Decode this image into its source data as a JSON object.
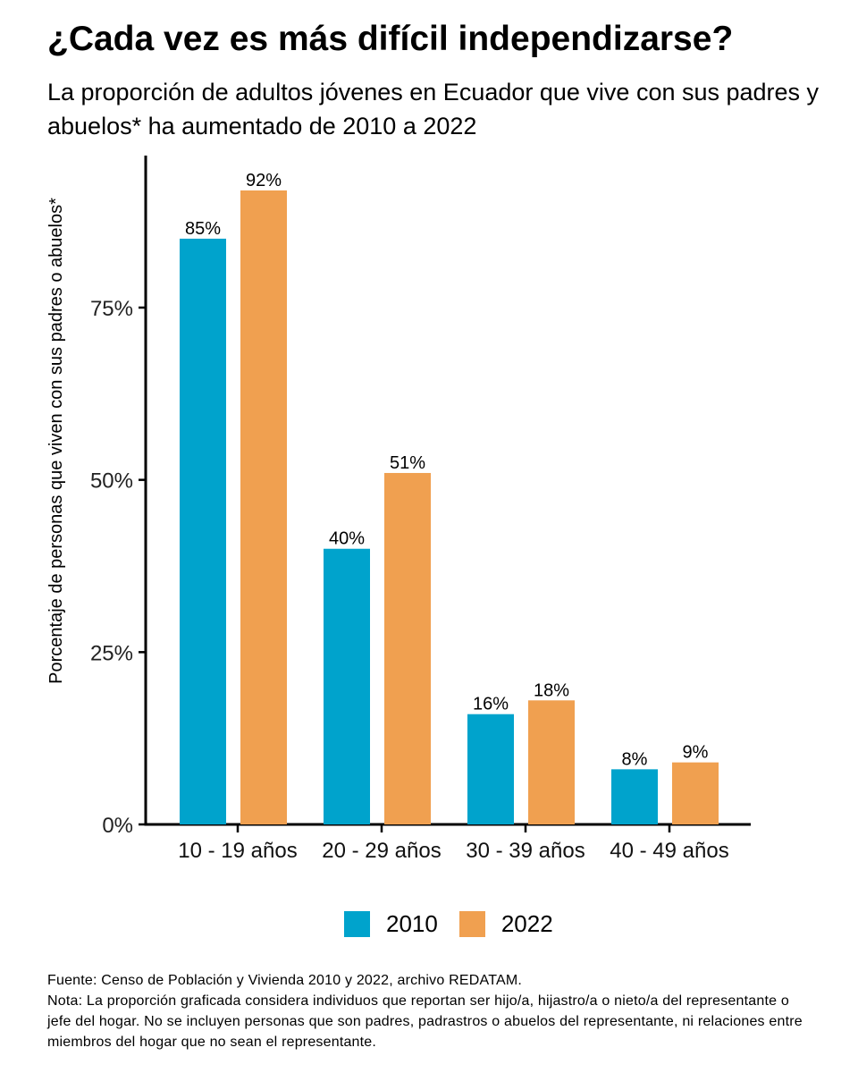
{
  "title": "¿Cada vez es más difícil independizarse?",
  "subtitle": "La proporción de adultos jóvenes en Ecuador que vive con sus padres y abuelos* ha aumentado de 2010 a 2022",
  "footer": {
    "source": "Fuente: Censo de Población y Vivienda 2010 y 2022, archivo REDATAM.",
    "note": "Nota: La proporción graficada considera individuos que reportan ser hijo/a, hijastro/a o nieto/a del representante o jefe del hogar. No se incluyen personas que son padres, padrastros o abuelos del representante, ni relaciones entre miembros del hogar que no sean el representante."
  },
  "chart_data": {
    "type": "bar",
    "title": "¿Cada vez es más difícil independizarse?",
    "xlabel": "",
    "ylabel": "Porcentaje de personas que viven con sus padres o abuelos*",
    "ylim": [
      0,
      97
    ],
    "yticks": [
      0,
      25,
      50,
      75
    ],
    "ytick_labels": [
      "0%",
      "25%",
      "50%",
      "75%"
    ],
    "categories": [
      "10 - 19 años",
      "20 - 29 años",
      "30 - 39 años",
      "40 - 49 años"
    ],
    "series": [
      {
        "name": "2010",
        "color": "#00A3CC",
        "values": [
          85,
          40,
          16,
          8
        ],
        "labels": [
          "85%",
          "40%",
          "16%",
          "8%"
        ]
      },
      {
        "name": "2022",
        "color": "#F0A050",
        "values": [
          92,
          51,
          18,
          9
        ],
        "labels": [
          "92%",
          "51%",
          "18%",
          "9%"
        ]
      }
    ],
    "legend_position": "bottom",
    "grid": false
  }
}
